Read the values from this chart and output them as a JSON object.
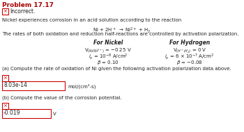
{
  "title": "Problem 17.17",
  "incorrect_text": "Incorrect.",
  "intro_text": "Nickel experiences corrosion in an acid solution according to the reaction",
  "reaction_parts": [
    "Ni + 2H",
    "+",
    " → Ni",
    "2+",
    " + H",
    "2"
  ],
  "rates_text": "The rates of both oxidation and reduction half-reactions are controlled by activation polarization.",
  "col1_header": "For Nickel",
  "col2_header": "For Hydrogen",
  "part_a_text": "(a) Compute the rate of oxidation of Ni given the following activation polarization data above.",
  "part_a_answer": "8.03e-14",
  "part_a_unit": "mol/(cm²-s)",
  "part_b_text": "(b) Compute the value of the corrosion potential.",
  "part_b_answer": "-0.019",
  "part_b_unit": "V",
  "bg_color": "#ffffff",
  "title_color": "#aa0000",
  "text_color": "#222222",
  "box_edge_color": "#cc0000",
  "x_mark_color": "#cc0000"
}
